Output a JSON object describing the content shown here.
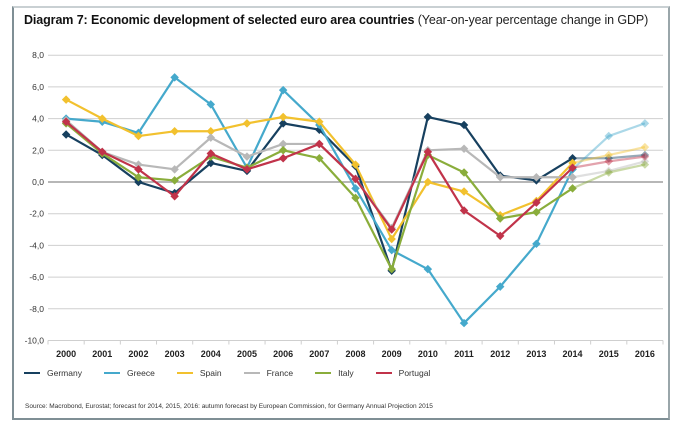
{
  "chart_data": {
    "type": "line",
    "title": "Diagram 7: Economic development of selected euro area countries",
    "subtitle": "(Year-on-year percentage change in GDP)",
    "xlabel": "",
    "ylabel": "",
    "ylim": [
      -10,
      8
    ],
    "yticks": [
      8,
      6,
      4,
      2,
      0,
      -2,
      -4,
      -6,
      -8,
      -10
    ],
    "ytick_labels": [
      "8,0",
      "6,0",
      "4,0",
      "2,0",
      "0,0",
      "-2,0",
      "-4,0",
      "-6,0",
      "-8,0",
      "-10,0"
    ],
    "grid": true,
    "legend_position": "bottom-left",
    "x": [
      "2000",
      "2001",
      "2002",
      "2003",
      "2004",
      "2005",
      "2006",
      "2007",
      "2008",
      "2009",
      "2010",
      "2011",
      "2012",
      "2013",
      "2014",
      "2015",
      "2016"
    ],
    "forecast_from": "2014",
    "series": [
      {
        "name": "Germany",
        "color": "#17405f",
        "values": [
          3.0,
          1.7,
          0.0,
          -0.7,
          1.2,
          0.7,
          3.7,
          3.3,
          1.0,
          -5.6,
          4.1,
          3.6,
          0.4,
          0.1,
          1.5,
          1.5,
          1.7
        ]
      },
      {
        "name": "Greece",
        "color": "#45a9cc",
        "values": [
          4.0,
          3.8,
          3.1,
          6.6,
          4.9,
          0.9,
          5.8,
          3.6,
          -0.4,
          -4.3,
          -5.5,
          -8.9,
          -6.6,
          -3.9,
          0.8,
          2.9,
          3.7
        ]
      },
      {
        "name": "Spain",
        "color": "#f2c12e",
        "values": [
          5.2,
          4.0,
          2.9,
          3.2,
          3.2,
          3.7,
          4.1,
          3.8,
          1.1,
          -3.6,
          0.0,
          -0.6,
          -2.1,
          -1.2,
          1.2,
          1.7,
          2.2
        ]
      },
      {
        "name": "France",
        "color": "#b8b8b8",
        "values": [
          3.9,
          1.9,
          1.1,
          0.8,
          2.8,
          1.6,
          2.4,
          2.4,
          0.2,
          -2.9,
          2.0,
          2.1,
          0.3,
          0.3,
          0.3,
          0.7,
          1.3
        ]
      },
      {
        "name": "Italy",
        "color": "#8aad3b",
        "values": [
          3.7,
          1.8,
          0.3,
          0.1,
          1.6,
          0.9,
          2.0,
          1.5,
          -1.0,
          -5.5,
          1.7,
          0.6,
          -2.3,
          -1.9,
          -0.4,
          0.6,
          1.1
        ]
      },
      {
        "name": "Portugal",
        "color": "#c1334a",
        "values": [
          3.8,
          1.9,
          0.8,
          -0.9,
          1.8,
          0.8,
          1.5,
          2.4,
          0.2,
          -3.0,
          1.9,
          -1.8,
          -3.4,
          -1.3,
          0.9,
          1.3,
          1.6
        ]
      }
    ]
  },
  "source_note": "Source: Macrobond, Eurostat; forecast for 2014, 2015, 2016: autumn forecast by European Commission, for Germany Annual Projection 2015"
}
